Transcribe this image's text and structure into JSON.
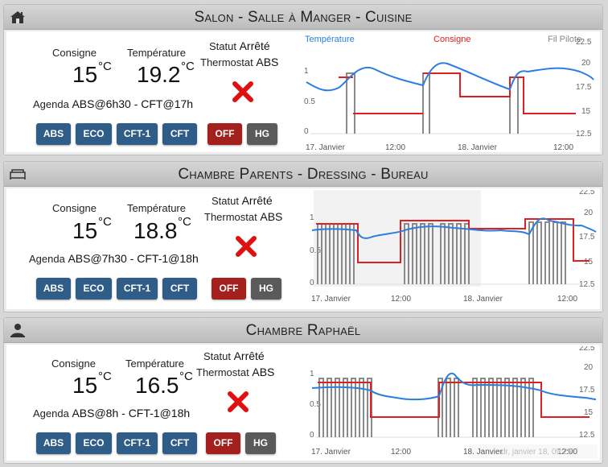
{
  "labels": {
    "consigne": "Consigne",
    "temperature": "Température",
    "statut": "Statut",
    "thermostat": "Thermostat",
    "agenda": "Agenda",
    "unit": "°C"
  },
  "buttons": {
    "abs": "ABS",
    "eco": "ECO",
    "cft1": "CFT-1",
    "cft": "CFT",
    "off": "OFF",
    "hg": "HG"
  },
  "colors": {
    "temperature": "#2b7de1",
    "consigne": "#e02020",
    "fil_pilote": "#888888"
  },
  "rooms": [
    {
      "title": "Salon - Salle à Manger - Cuisine",
      "icon": "house-icon",
      "consigne": "15",
      "temperature": "19.2",
      "statut": "Arrêté",
      "thermostat": "ABS",
      "agenda": "ABS@6h30 - CFT@17h"
    },
    {
      "title": "Chambre Parents - Dressing - Bureau",
      "icon": "bed-icon",
      "consigne": "15",
      "temperature": "18.8",
      "statut": "Arrêté",
      "thermostat": "ABS",
      "agenda": "ABS@7h30 - CFT-1@18h"
    },
    {
      "title": "Chambre Raphaël",
      "icon": "person-icon",
      "consigne": "15",
      "temperature": "16.5",
      "statut": "Arrêté",
      "thermostat": "ABS",
      "agenda": "ABS@8h - CFT-1@18h"
    }
  ],
  "chart_data": [
    {
      "type": "line",
      "series": [
        {
          "name": "Température",
          "axis": "right",
          "x": [
            0,
            2,
            4,
            6,
            8,
            10,
            12,
            14,
            16,
            18,
            20,
            22,
            24,
            26,
            28,
            30,
            32,
            34,
            36,
            38,
            40,
            42,
            44
          ],
          "values": [
            17.8,
            17.4,
            17.1,
            17.5,
            18.2,
            18.6,
            18.4,
            18.0,
            17.7,
            17.6,
            19.2,
            18.7,
            18.4,
            18.2,
            18.0,
            17.8,
            16.8,
            18.5,
            19.0,
            18.7,
            18.5,
            18.8,
            18.4
          ]
        },
        {
          "name": "Consigne",
          "axis": "right",
          "x": [
            0,
            1.6,
            3,
            7.5,
            7.5,
            11,
            11,
            15,
            15,
            19.5,
            19.5,
            26,
            26
          ],
          "values": [
            18,
            18,
            15,
            15,
            18,
            18,
            16.5,
            16.5,
            18,
            18,
            15,
            15,
            15
          ]
        },
        {
          "name": "Fil Pilote",
          "axis": "left",
          "x": [
            0,
            1.5,
            1.5,
            2,
            2,
            7.5,
            7.5,
            8,
            8,
            11,
            11,
            15,
            15,
            15.5,
            15.5,
            19,
            19
          ],
          "values": [
            0.9,
            0.9,
            0,
            0,
            0.9,
            0.9,
            0,
            0,
            0.95,
            0.95,
            0,
            0,
            0.95,
            0.95,
            0,
            0,
            0
          ]
        }
      ],
      "x_ticks": [
        "17. Janvier",
        "12:00",
        "18. Janvier",
        "12:00"
      ],
      "y_left_ticks": [
        "1",
        "0.5",
        "0"
      ],
      "y_right_ticks": [
        "22.5",
        "20",
        "17.5",
        "15",
        "12.5"
      ]
    },
    {
      "type": "line",
      "series": [
        {
          "name": "Température",
          "axis": "right",
          "values": [
            18.6,
            18.5,
            18.4,
            17.5,
            18.0,
            18.2,
            19.0,
            18.8,
            18.5,
            18.3,
            18.0,
            17.8,
            17.6,
            19.8,
            19.5,
            18.8
          ]
        },
        {
          "name": "Consigne",
          "axis": "right",
          "values": [
            18,
            18,
            18,
            15,
            15,
            19,
            19,
            18,
            18,
            18,
            18,
            19,
            19,
            15,
            15,
            15
          ]
        },
        {
          "name": "Fil Pilote",
          "axis": "left",
          "values": [
            1,
            0,
            1,
            0,
            1,
            0,
            1,
            0,
            1,
            0,
            1,
            0,
            1,
            0,
            1,
            0
          ]
        }
      ],
      "x_ticks": [
        "17. Janvier",
        "12:00",
        "18. Janvier",
        "12:00"
      ],
      "y_left_ticks": [
        "1",
        "0.5",
        "0"
      ],
      "y_right_ticks": [
        "22.5",
        "20",
        "17.5",
        "15",
        "12.5"
      ]
    },
    {
      "type": "line",
      "series": [
        {
          "name": "Température",
          "axis": "right",
          "values": [
            18.5,
            18.4,
            18.2,
            18.8,
            17.8,
            17.5,
            17.3,
            17.2,
            17.5,
            20.0,
            19.0,
            18.7,
            18.5,
            18.3,
            18.0,
            17.8,
            17.6,
            17.5
          ]
        },
        {
          "name": "Consigne",
          "axis": "right",
          "values": [
            19,
            19,
            19,
            15,
            15,
            15,
            15,
            15,
            15,
            19,
            19,
            19,
            19,
            15,
            15,
            15,
            15,
            15
          ]
        },
        {
          "name": "Fil Pilote",
          "axis": "left",
          "values": [
            1,
            0,
            1,
            0,
            1,
            0,
            1,
            0,
            1,
            0,
            1,
            0,
            1,
            0,
            1,
            0,
            1,
            0
          ]
        }
      ],
      "x_ticks": [
        "17. Janvier",
        "12:00",
        "18. Janvier",
        "12:00"
      ],
      "y_left_ticks": [
        "1",
        "0.5",
        "0"
      ],
      "y_right_ticks": [
        "22.5",
        "20",
        "17.5",
        "15",
        "12.5"
      ],
      "tooltip": "dr, janvier 18, 09:25"
    }
  ]
}
